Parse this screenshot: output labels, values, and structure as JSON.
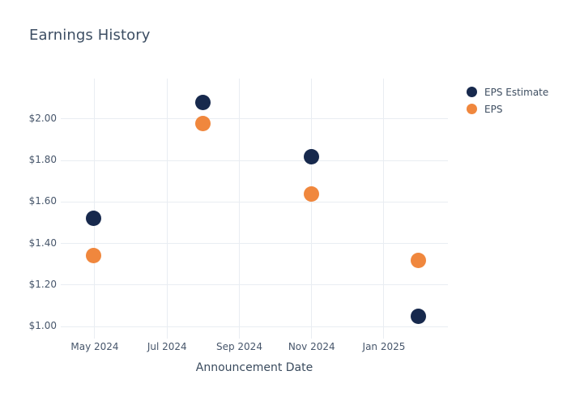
{
  "colors": {
    "background": "#ffffff",
    "grid": "#e9edf2",
    "title_text": "#3d4e63",
    "tick_text": "#47566b",
    "axis_title_text": "#3a4b5e",
    "legend_text": "#3e4e61",
    "eps_estimate": "#17294D",
    "eps_actual": "#F0873D"
  },
  "chart_data": {
    "type": "scatter",
    "title": "Earnings History",
    "x_axis": {
      "label": "Announcement Date",
      "unit": "months_since_jan_2024",
      "range": [
        3.059,
        13.771
      ],
      "ticks": [
        {
          "value": 4,
          "label": "May 2024"
        },
        {
          "value": 6,
          "label": "Jul 2024"
        },
        {
          "value": 8,
          "label": "Sep 2024"
        },
        {
          "value": 10,
          "label": "Nov 2024"
        },
        {
          "value": 12,
          "label": "Jan 2025"
        }
      ]
    },
    "y_axis": {
      "label": "",
      "unit": "USD per share",
      "range": [
        0.961,
        2.195
      ],
      "ticks": [
        {
          "value": 1.0,
          "label": "$1.00"
        },
        {
          "value": 1.2,
          "label": "$1.20"
        },
        {
          "value": 1.4,
          "label": "$1.40"
        },
        {
          "value": 1.6,
          "label": "$1.60"
        },
        {
          "value": 1.8,
          "label": "$1.80"
        },
        {
          "value": 2.0,
          "label": "$2.00"
        }
      ]
    },
    "grid": true,
    "legend_position": "top-right-outside",
    "series": [
      {
        "name": "EPS Estimate",
        "color": "#17294D",
        "marker_size": 19,
        "points": [
          {
            "x": 3.96,
            "y": 1.52
          },
          {
            "x": 7.0,
            "y": 2.08
          },
          {
            "x": 10.0,
            "y": 1.82
          },
          {
            "x": 12.95,
            "y": 1.05
          }
        ]
      },
      {
        "name": "EPS",
        "color": "#F0873D",
        "marker_size": 19,
        "points": [
          {
            "x": 3.96,
            "y": 1.34
          },
          {
            "x": 7.0,
            "y": 1.98
          },
          {
            "x": 10.0,
            "y": 1.64
          },
          {
            "x": 12.95,
            "y": 1.32
          }
        ]
      }
    ]
  }
}
